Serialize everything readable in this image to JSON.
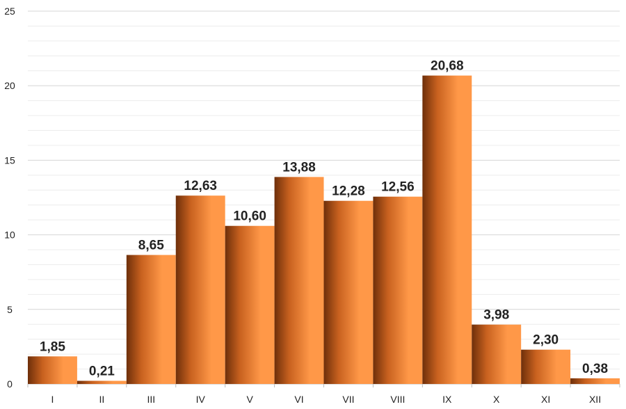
{
  "chart_data": {
    "type": "bar",
    "title": "",
    "xlabel": "",
    "ylabel": "",
    "categories": [
      "I",
      "II",
      "III",
      "IV",
      "V",
      "VI",
      "VII",
      "VIII",
      "IX",
      "X",
      "XI",
      "XII"
    ],
    "values": [
      1.85,
      0.21,
      8.65,
      12.63,
      10.6,
      13.88,
      12.28,
      12.56,
      20.68,
      3.98,
      2.3,
      0.38
    ],
    "data_labels": [
      "1,85",
      "0,21",
      "8,65",
      "12,63",
      "10,60",
      "13,88",
      "12,28",
      "12,56",
      "20,68",
      "3,98",
      "2,30",
      "0,38"
    ],
    "ylim": [
      0,
      25
    ],
    "yticks": [
      0,
      5,
      10,
      15,
      20,
      25
    ],
    "ytick_labels": [
      "0",
      "5",
      "10",
      "15",
      "20",
      "25"
    ],
    "grid": true,
    "minor_grid": true,
    "legend": "none",
    "colors": {
      "bar_dark": "#6e2f0a",
      "bar_mid": "#c8611f",
      "bar_light": "#ff9848",
      "grid_major": "#d6d6d6",
      "grid_minor": "#ececec",
      "axis": "#bdbdbd"
    }
  }
}
